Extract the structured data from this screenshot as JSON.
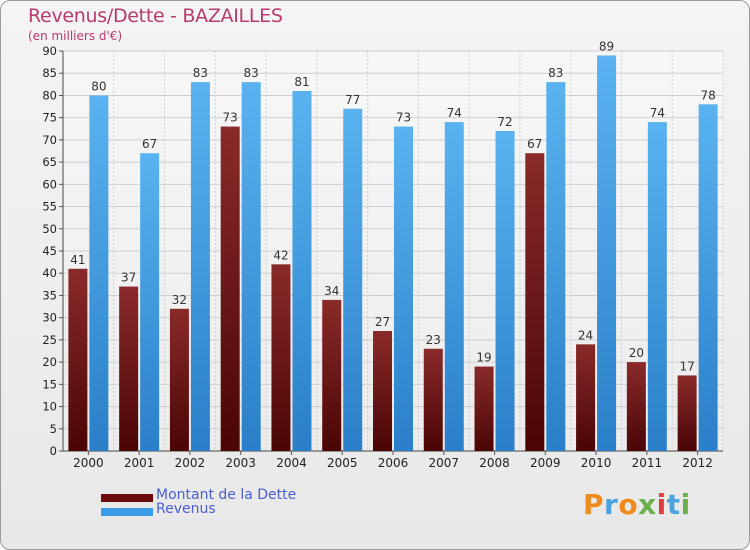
{
  "title": "Revenus/Dette - BAZAILLES",
  "subtitle": "(en milliers d'€)",
  "logo": {
    "text": "Proxiti",
    "letters": [
      "P",
      "r",
      "o",
      "x",
      "i",
      "t",
      "i"
    ],
    "colors": [
      "#f08a1c",
      "#4aa3df",
      "#f08a1c",
      "#6ab04c",
      "#e23d3d",
      "#4aa3df",
      "#6ab04c"
    ]
  },
  "legend": {
    "position": "bottom-left",
    "items": [
      {
        "label": "Montant de la Dette",
        "color": "#6b0a0a"
      },
      {
        "label": "Revenus",
        "color": "#3a9be6"
      }
    ]
  },
  "colors": {
    "debt": "#7a1c1c",
    "revenue": "#4aa7ea",
    "grid": "#cfcfcf",
    "axis_text": "#222222"
  },
  "chart_data": {
    "type": "bar",
    "title": "Revenus/Dette - BAZAILLES",
    "subtitle": "(en milliers d'€)",
    "categories": [
      "2000",
      "2001",
      "2002",
      "2003",
      "2004",
      "2005",
      "2006",
      "2007",
      "2008",
      "2009",
      "2010",
      "2011",
      "2012"
    ],
    "series": [
      {
        "name": "Montant de la Dette",
        "values": [
          41,
          37,
          32,
          73,
          42,
          34,
          27,
          23,
          19,
          67,
          24,
          20,
          17
        ]
      },
      {
        "name": "Revenus",
        "values": [
          80,
          67,
          83,
          83,
          81,
          77,
          73,
          74,
          72,
          83,
          89,
          74,
          78
        ]
      }
    ],
    "ylim": [
      0,
      90
    ],
    "yticks": [
      0,
      5,
      10,
      15,
      20,
      25,
      30,
      35,
      40,
      45,
      50,
      55,
      60,
      65,
      70,
      75,
      80,
      85,
      90
    ],
    "grid": true,
    "xlabel": "",
    "ylabel": ""
  }
}
